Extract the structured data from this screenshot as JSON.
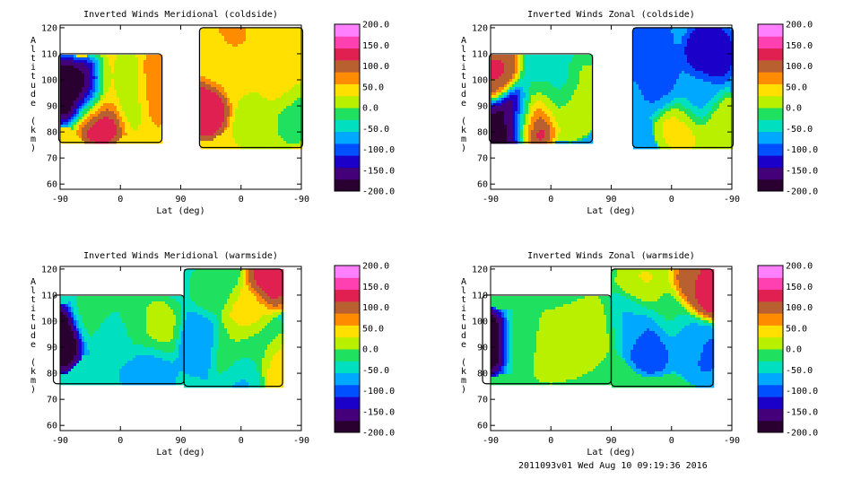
{
  "chart_data": [
    {
      "type": "contour",
      "title": "Inverted Winds Meridional (coldside)",
      "xlabel": "Lat (deg)",
      "ylabel": "Altitude (km)",
      "x_tick_labels": [
        "-90",
        "0",
        "90",
        "0",
        "-90"
      ],
      "y_ticks": [
        60,
        70,
        80,
        90,
        100,
        110,
        120
      ],
      "ylim": [
        58,
        121
      ],
      "colorbar": {
        "min": -200,
        "max": 200,
        "labels": [
          "200.0",
          "150.0",
          "100.0",
          "50.0",
          "0.0",
          "-50.0",
          "-100.0",
          "-150.0",
          "-200.0"
        ]
      },
      "blobs": [
        {
          "x": -86,
          "y": 96,
          "v": -200
        },
        {
          "x": -44,
          "y": 95,
          "v": -200
        },
        {
          "x": -30,
          "y": 88,
          "v": 150
        },
        {
          "x": -14,
          "y": 96,
          "v": 80
        },
        {
          "x": 5,
          "y": 96,
          "v": -30
        },
        {
          "x": 22,
          "y": 94,
          "v": 20
        },
        {
          "x": 48,
          "y": 96,
          "v": 90
        },
        {
          "x": 122,
          "y": 90,
          "v": 140
        },
        {
          "x": 143,
          "y": 106,
          "v": 40
        },
        {
          "x": 162,
          "y": 113,
          "v": 60
        },
        {
          "x": 188,
          "y": 101,
          "v": 30
        },
        {
          "x": 208,
          "y": 84,
          "v": 10
        },
        {
          "x": 240,
          "y": 96,
          "v": 45
        },
        {
          "x": 255,
          "y": 88,
          "v": -20
        }
      ],
      "regions": [
        {
          "x0": -92,
          "x1": 62,
          "y0": 76,
          "y1": 110
        },
        {
          "x0": 118,
          "x1": 272,
          "y0": 74,
          "y1": 120
        }
      ],
      "base": 40
    },
    {
      "type": "contour",
      "title": "Inverted Winds Zonal (coldside)",
      "xlabel": "Lat (deg)",
      "ylabel": "Altitude (km)",
      "x_tick_labels": [
        "-90",
        "0",
        "90",
        "0",
        "-90"
      ],
      "y_ticks": [
        60,
        70,
        80,
        90,
        100,
        110,
        120
      ],
      "ylim": [
        58,
        121
      ],
      "colorbar": {
        "min": -200,
        "max": 200,
        "labels": [
          "200.0",
          "150.0",
          "100.0",
          "50.0",
          "0.0",
          "-50.0",
          "-100.0",
          "-150.0",
          "-200.0"
        ]
      },
      "blobs": [
        {
          "x": -80,
          "y": 103,
          "v": 120
        },
        {
          "x": -80,
          "y": 80,
          "v": -180
        },
        {
          "x": -48,
          "y": 88,
          "v": -200
        },
        {
          "x": -28,
          "y": 86,
          "v": 170
        },
        {
          "x": -15,
          "y": 100,
          "v": -40
        },
        {
          "x": -8,
          "y": 92,
          "v": 20
        },
        {
          "x": 16,
          "y": 95,
          "v": -60
        },
        {
          "x": 30,
          "y": 90,
          "v": 40
        },
        {
          "x": 48,
          "y": 96,
          "v": 10
        },
        {
          "x": 140,
          "y": 113,
          "v": -110
        },
        {
          "x": 165,
          "y": 99,
          "v": -90
        },
        {
          "x": 195,
          "y": 82,
          "v": 40
        },
        {
          "x": 218,
          "y": 92,
          "v": -70
        },
        {
          "x": 236,
          "y": 110,
          "v": -130
        },
        {
          "x": 255,
          "y": 82,
          "v": 30
        }
      ],
      "regions": [
        {
          "x0": -92,
          "x1": 62,
          "y0": 76,
          "y1": 110
        },
        {
          "x0": 122,
          "x1": 272,
          "y0": 74,
          "y1": 120
        }
      ],
      "base": -60
    },
    {
      "type": "contour",
      "title": "Inverted Winds Meridional (warmside)",
      "xlabel": "Lat (deg)",
      "ylabel": "Altitude (km)",
      "x_tick_labels": [
        "-90",
        "0",
        "90",
        "0",
        "-90"
      ],
      "y_ticks": [
        60,
        70,
        80,
        90,
        100,
        110,
        120
      ],
      "ylim": [
        58,
        121
      ],
      "colorbar": {
        "min": -200,
        "max": 200,
        "labels": [
          "200.0",
          "150.0",
          "100.0",
          "50.0",
          "0.0",
          "-50.0",
          "-100.0",
          "-150.0",
          "-200.0"
        ]
      },
      "blobs": [
        {
          "x": -96,
          "y": 93,
          "v": -200
        },
        {
          "x": -35,
          "y": 102,
          "v": -20
        },
        {
          "x": -5,
          "y": 94,
          "v": -60
        },
        {
          "x": 12,
          "y": 97,
          "v": -10
        },
        {
          "x": 42,
          "y": 82,
          "v": -70
        },
        {
          "x": 55,
          "y": 97,
          "v": 10
        },
        {
          "x": 120,
          "y": 92,
          "v": -80
        },
        {
          "x": 140,
          "y": 112,
          "v": -20
        },
        {
          "x": 165,
          "y": 90,
          "v": 0
        },
        {
          "x": 184,
          "y": 103,
          "v": 40
        },
        {
          "x": 210,
          "y": 89,
          "v": -10
        },
        {
          "x": 225,
          "y": 117,
          "v": 130
        },
        {
          "x": 235,
          "y": 82,
          "v": 60
        },
        {
          "x": 188,
          "y": 80,
          "v": -60
        }
      ],
      "regions": [
        {
          "x0": -100,
          "x1": 95,
          "y0": 76,
          "y1": 110
        },
        {
          "x0": 95,
          "x1": 242,
          "y0": 75,
          "y1": 120
        }
      ],
      "base": -50
    },
    {
      "type": "contour",
      "title": "Inverted Winds Zonal (warmside)",
      "xlabel": "Lat (deg)",
      "ylabel": "Altitude (km)",
      "x_tick_labels": [
        "-90",
        "0",
        "90",
        "0",
        "-90"
      ],
      "y_ticks": [
        60,
        70,
        80,
        90,
        100,
        110,
        120
      ],
      "ylim": [
        58,
        121
      ],
      "colorbar": {
        "min": -200,
        "max": 200,
        "labels": [
          "200.0",
          "150.0",
          "100.0",
          "50.0",
          "0.0",
          "-50.0",
          "-100.0",
          "-150.0",
          "-200.0"
        ]
      },
      "blobs": [
        {
          "x": -97,
          "y": 92,
          "v": -200
        },
        {
          "x": -40,
          "y": 92,
          "v": -20
        },
        {
          "x": 0,
          "y": 90,
          "v": 30
        },
        {
          "x": 30,
          "y": 92,
          "v": 25
        },
        {
          "x": 62,
          "y": 97,
          "v": 10
        },
        {
          "x": 120,
          "y": 100,
          "v": -60
        },
        {
          "x": 150,
          "y": 92,
          "v": -110
        },
        {
          "x": 140,
          "y": 115,
          "v": 30
        },
        {
          "x": 175,
          "y": 101,
          "v": -20
        },
        {
          "x": 200,
          "y": 93,
          "v": -70
        },
        {
          "x": 220,
          "y": 114,
          "v": 110
        },
        {
          "x": 240,
          "y": 112,
          "v": 140
        },
        {
          "x": 230,
          "y": 88,
          "v": -90
        }
      ],
      "regions": [
        {
          "x0": -102,
          "x1": 90,
          "y0": 76,
          "y1": 110
        },
        {
          "x0": 90,
          "x1": 242,
          "y0": 75,
          "y1": 120
        }
      ],
      "base": -20
    }
  ],
  "footer": "2011093v01 Wed Aug 10 09:19:36 2016",
  "colormap": [
    "#2a0030",
    "#440078",
    "#1a00c8",
    "#0050ff",
    "#00a8ff",
    "#00e0c0",
    "#20e060",
    "#b8f000",
    "#ffe000",
    "#ff8c00",
    "#b86030",
    "#e02050",
    "#ff40b0",
    "#ff80ff"
  ]
}
